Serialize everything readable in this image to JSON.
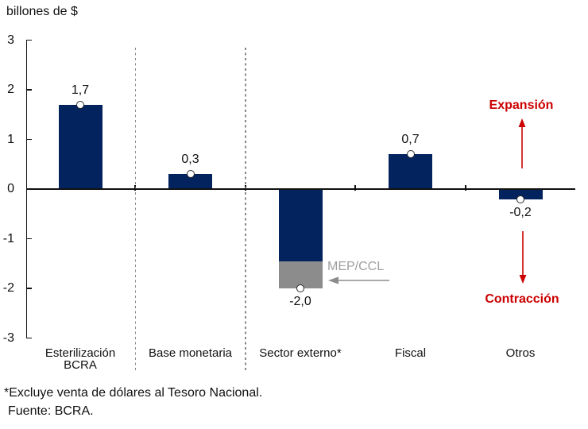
{
  "title": "billones de $",
  "chart_data": {
    "type": "bar",
    "title": "billones de $",
    "xlabel": "",
    "ylabel": "billones de $",
    "categories": [
      "Esterilización BCRA",
      "Base monetaria",
      "Sector externo*",
      "Fiscal",
      "Otros"
    ],
    "values": [
      1.7,
      0.3,
      -2.0,
      0.7,
      -0.2
    ],
    "value_labels": [
      "1,7",
      "0,3",
      "-2,0",
      "0,7",
      "-0,2"
    ],
    "y_ticks": [
      3,
      2,
      1,
      0,
      -1,
      -2,
      -3
    ],
    "y_tick_labels": [
      "3",
      "2",
      "1",
      "0",
      "-1",
      "-2",
      "-3"
    ],
    "ylim": [
      -3,
      3
    ],
    "grid": false,
    "legend": "none",
    "separators_after_category_index": [
      0,
      1
    ],
    "mep_ccl_segment": {
      "category": "Sector externo*",
      "from": -1.45,
      "to": -2.0,
      "label": "MEP/CCL"
    },
    "bar_color": "#03235e",
    "segment_color": "#8c8c8c",
    "marker_style": "white-circle-on-bar-end"
  },
  "annotations": {
    "expansion": {
      "label": "Expansión",
      "color": "#cc0000",
      "arrow": "up"
    },
    "contraction": {
      "label": "Contracción",
      "color": "#cc0000",
      "arrow": "down"
    },
    "mep_ccl": {
      "label": "MEP/CCL",
      "color": "#9e9e9e",
      "arrow": "left"
    }
  },
  "footer": {
    "note": "*Excluye venta de dólares al Tesoro Nacional.",
    "source": "Fuente: BCRA."
  },
  "colors": {
    "bar_navy": "#03235e",
    "segment_gray": "#8c8c8c",
    "annotation_red": "#cc0000",
    "mep_gray": "#9e9e9e",
    "axis_black": "#111111"
  }
}
